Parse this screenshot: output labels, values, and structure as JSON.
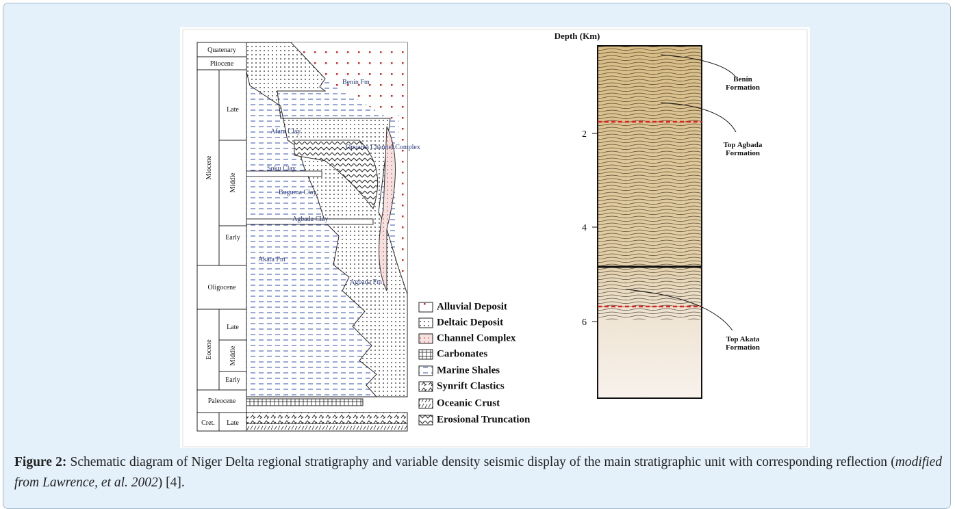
{
  "figure": {
    "stratigraphy": {
      "ages": [
        "Quatenary",
        "Pliocene",
        "Miocene",
        "Oligocene",
        "Eocene",
        "Paleocene",
        "Cret."
      ],
      "subages": [
        "Late",
        "Middle",
        "Early",
        "Late",
        "Middle",
        "Early",
        "Late"
      ],
      "formations": [
        "Benin Fm",
        "Afam Clay",
        "Opuama Channel Complex",
        "Soku Clay",
        "Buguma Clay",
        "Agbada Clay",
        "Akata Fm",
        "Agbada Fm"
      ]
    },
    "legend": [
      "Alluvial Deposit",
      "Deltaic Deposit",
      "Channel Complex",
      "Carbonates",
      "Marine Shales",
      "Synrift Clastics",
      "Oceanic Crust",
      "Erosional Truncation"
    ],
    "seismic": {
      "axis_title": "Depth (Km)",
      "ticks": [
        2,
        4,
        6
      ],
      "labels": [
        "Benin Formation",
        "Top Agbada Formation",
        "Top Akata Formation"
      ]
    },
    "caption": {
      "label": "Figure 2:",
      "text": "Schematic diagram of Niger Delta regional stratigraphy and variable density seismic display of the main stratigraphic unit with corresponding reflection (",
      "source": "modified from Lawrence, et al. 2002",
      "end": ") [4]."
    }
  }
}
